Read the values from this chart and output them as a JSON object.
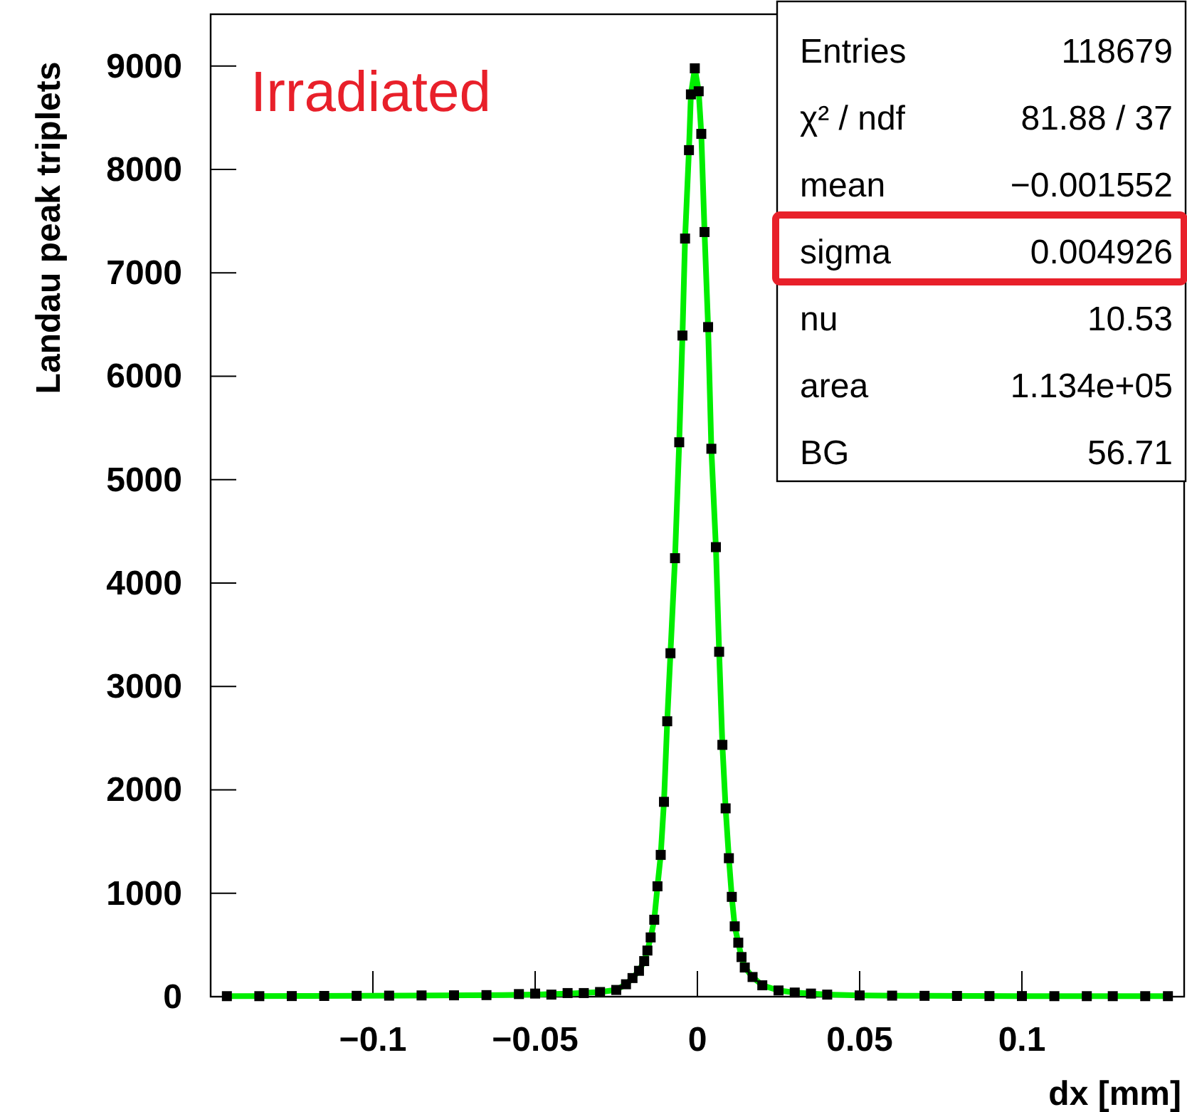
{
  "chart_data": {
    "type": "scatter",
    "xlabel": "dx [mm]",
    "ylabel": "Landau peak triplets",
    "xlim": [
      -0.15,
      0.15
    ],
    "ylim": [
      0,
      9500
    ],
    "xticks": [
      {
        "value": -0.1,
        "label": "−0.1"
      },
      {
        "value": -0.05,
        "label": "−0.05"
      },
      0,
      0.05,
      {
        "value": 0.1,
        "label": "0.1"
      }
    ],
    "yticks": [
      0,
      1000,
      2000,
      3000,
      4000,
      5000,
      6000,
      7000,
      8000,
      9000
    ],
    "grid": false,
    "annotations": [
      "Irradiated",
      "Entries",
      "118679",
      "χ² / ndf",
      "81.88 / 37",
      "mean",
      "−0.001552",
      "sigma",
      "0.004926",
      "nu",
      "10.53",
      "area",
      "1.134e+05",
      "BG",
      "56.71"
    ],
    "series": [
      {
        "type": "line",
        "color": "#00ee00",
        "line_style": "solid",
        "x": [
          -0.145,
          -0.12,
          -0.09,
          -0.06,
          -0.05,
          -0.04,
          -0.03,
          -0.025,
          -0.022,
          -0.02,
          -0.018,
          -0.0164,
          -0.0154,
          -0.0144,
          -0.0133,
          -0.0123,
          -0.0113,
          -0.0103,
          -0.0093,
          -0.0083,
          -0.0069,
          -0.0056,
          -0.0046,
          -0.0038,
          -0.0026,
          -0.002,
          -0.0008,
          0.0004,
          0.0012,
          0.0022,
          0.0033,
          0.0043,
          0.0057,
          0.0067,
          0.0077,
          0.0087,
          0.0097,
          0.0106,
          0.0115,
          0.0126,
          0.0136,
          0.0146,
          0.017,
          0.02,
          0.025,
          0.03,
          0.04,
          0.05,
          0.07,
          0.1,
          0.145
        ],
        "values": [
          5,
          7,
          10,
          15,
          20,
          30,
          45,
          65,
          120,
          180,
          250,
          344,
          446,
          573,
          744,
          1067,
          1371,
          1884,
          2663,
          3321,
          4240,
          5361,
          6393,
          7331,
          8186,
          8725,
          8977,
          8755,
          8343,
          7394,
          6475,
          5298,
          4347,
          3335,
          2435,
          1821,
          1339,
          965,
          680,
          522,
          383,
          282,
          190,
          110,
          60,
          40,
          20,
          12,
          8,
          6,
          5
        ]
      },
      {
        "color": "#000000",
        "marker": "square",
        "x": [
          -0.145,
          -0.135,
          -0.125,
          -0.115,
          -0.105,
          -0.095,
          -0.085,
          -0.075,
          -0.065,
          -0.055,
          -0.05,
          -0.045,
          -0.04,
          -0.035,
          -0.03,
          -0.025,
          -0.022,
          -0.02,
          -0.018,
          -0.0164,
          -0.0154,
          -0.0144,
          -0.0133,
          -0.0123,
          -0.0113,
          -0.0103,
          -0.0093,
          -0.0083,
          -0.0069,
          -0.0056,
          -0.0046,
          -0.0038,
          -0.0026,
          -0.002,
          -0.0008,
          0.0004,
          0.0012,
          0.0022,
          0.0033,
          0.0043,
          0.0057,
          0.0067,
          0.0077,
          0.0087,
          0.0097,
          0.0106,
          0.0115,
          0.0126,
          0.0136,
          0.0146,
          0.017,
          0.02,
          0.025,
          0.03,
          0.035,
          0.04,
          0.05,
          0.06,
          0.07,
          0.08,
          0.09,
          0.1,
          0.11,
          0.12,
          0.128,
          0.138,
          0.145
        ],
        "values": [
          5,
          5,
          6,
          7,
          8,
          10,
          12,
          13,
          15,
          25,
          30,
          20,
          35,
          35,
          45,
          65,
          120,
          180,
          250,
          344,
          446,
          573,
          744,
          1067,
          1371,
          1884,
          2663,
          3321,
          4240,
          5361,
          6393,
          7331,
          8186,
          8725,
          8977,
          8755,
          8343,
          7394,
          6475,
          5298,
          4347,
          3335,
          2435,
          1821,
          1339,
          965,
          680,
          522,
          383,
          282,
          190,
          110,
          60,
          40,
          30,
          20,
          12,
          10,
          8,
          7,
          6,
          6,
          5,
          5,
          5,
          5,
          5
        ]
      }
    ]
  }
}
